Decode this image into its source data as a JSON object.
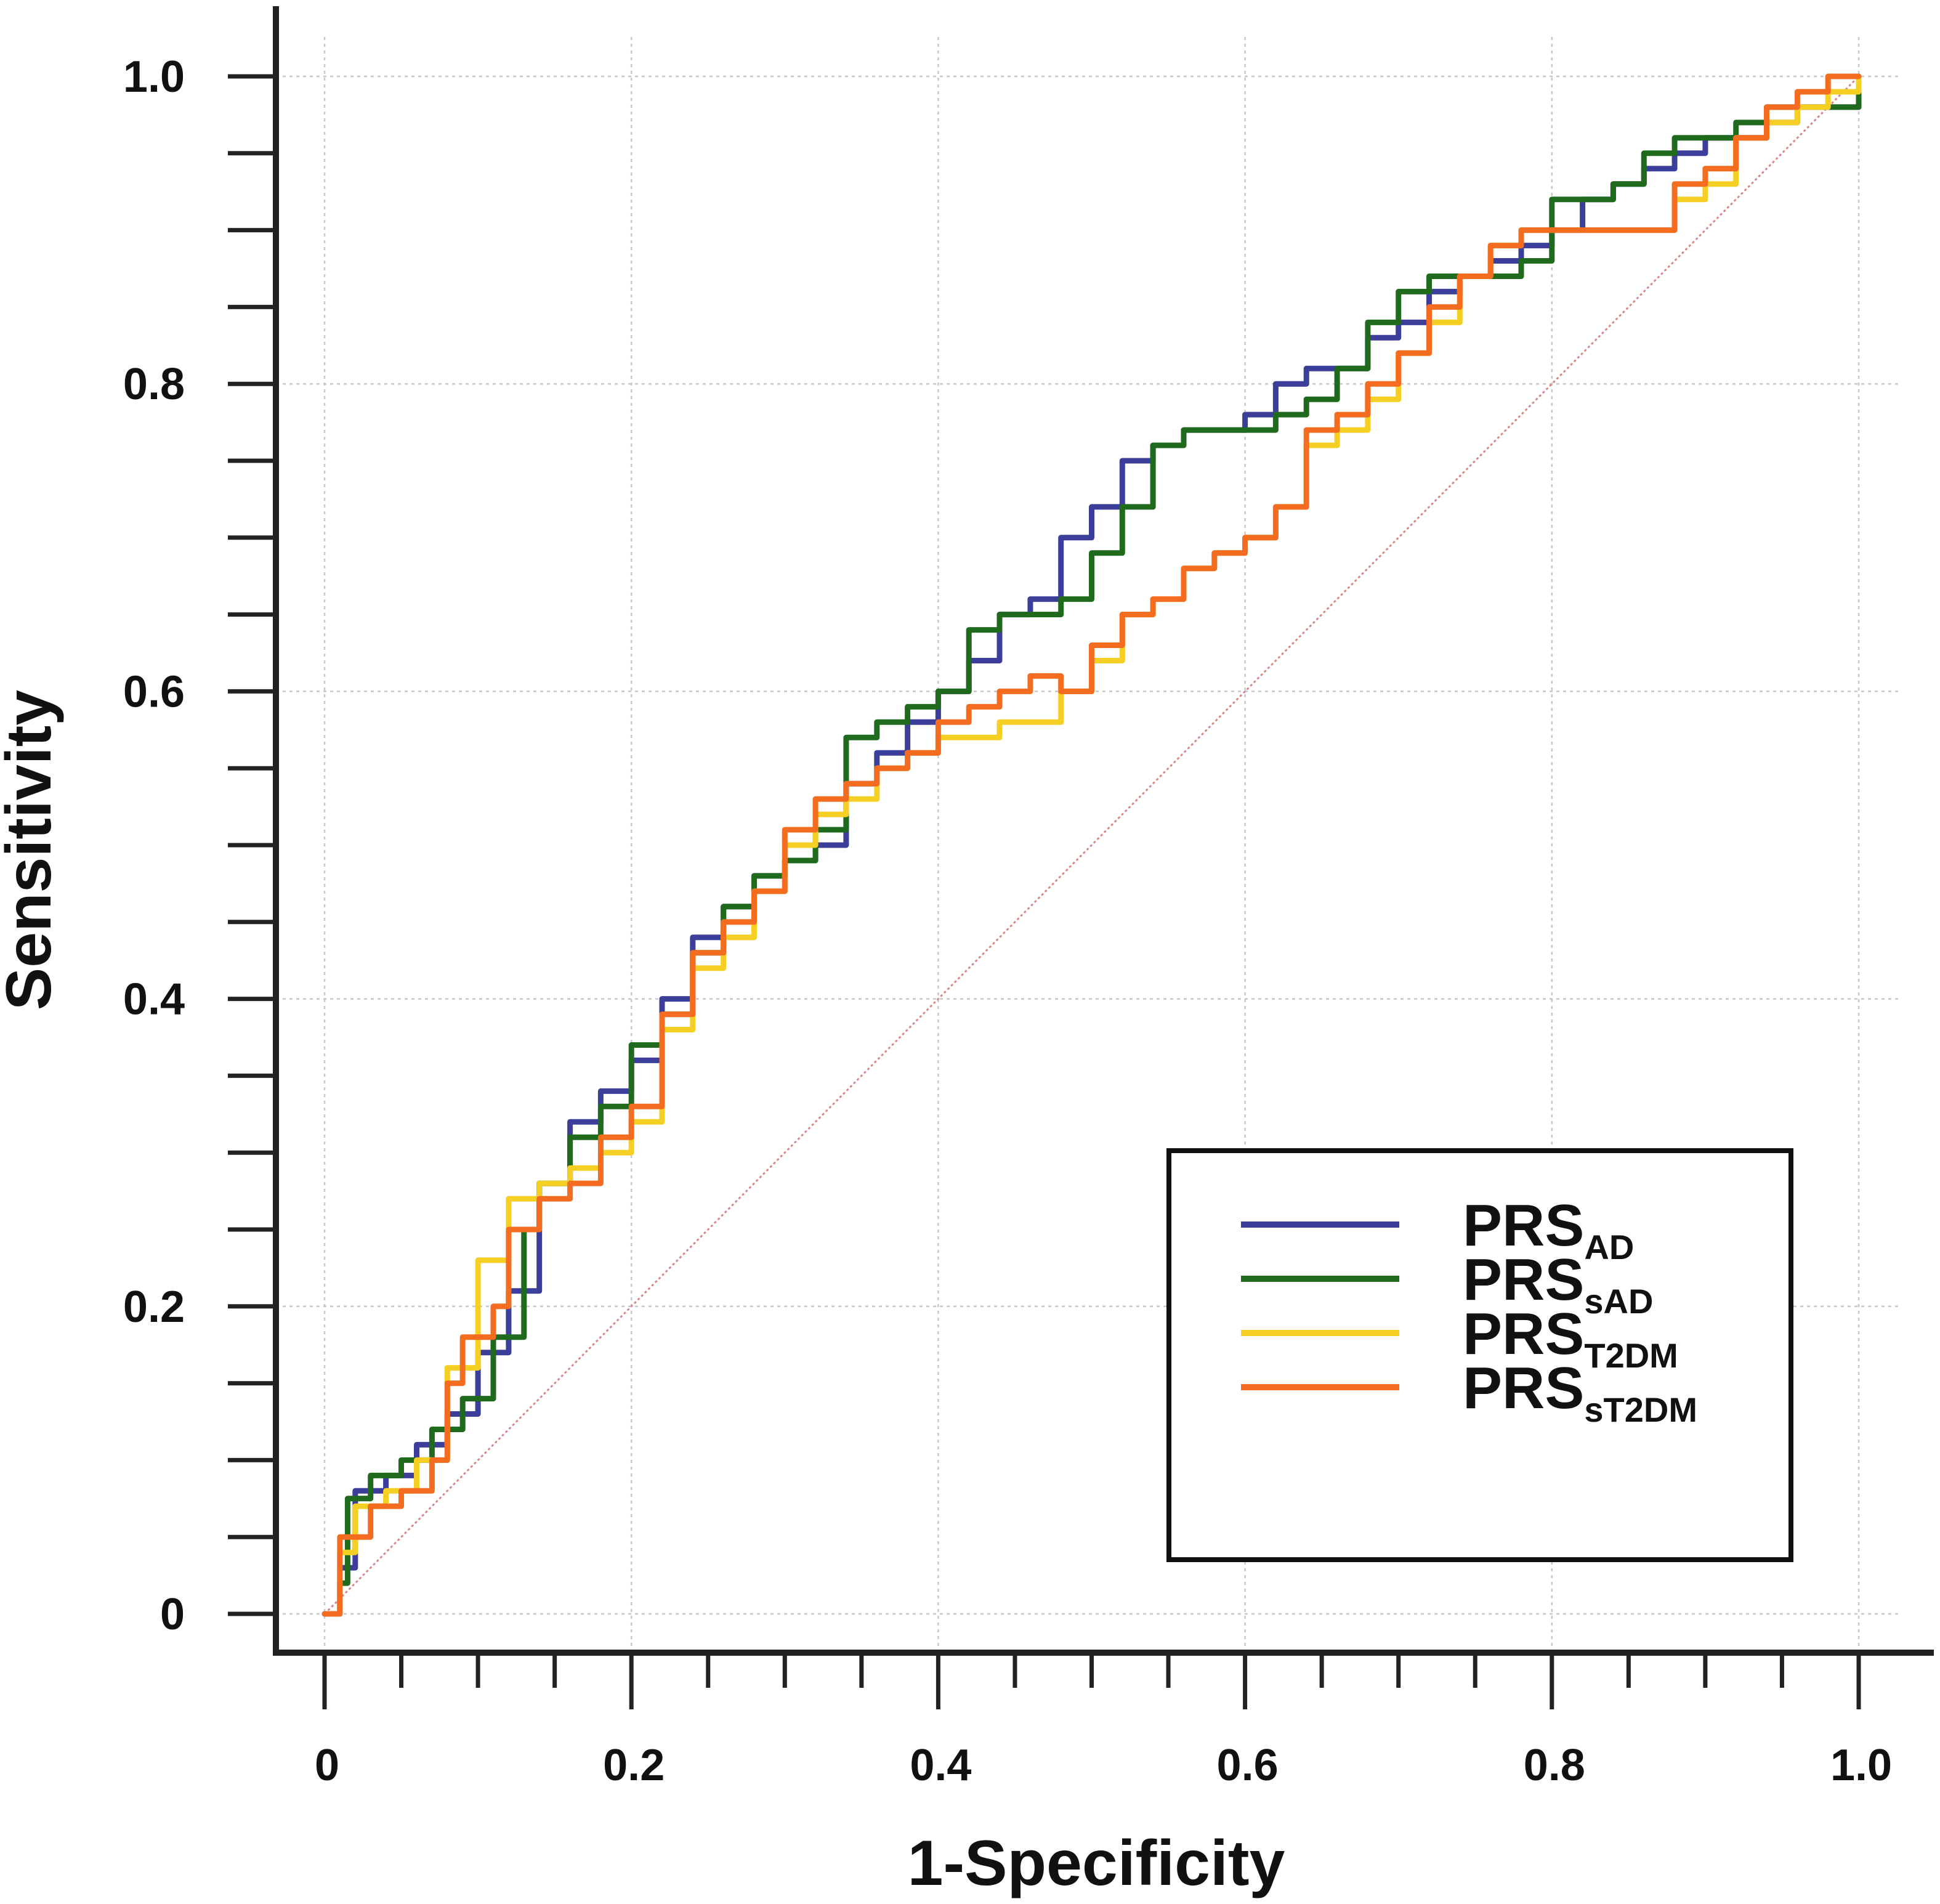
{
  "chart_data": {
    "type": "line",
    "title": "",
    "xlabel": "1-Specificity",
    "ylabel": "Sensitivity",
    "xlim": [
      0,
      1
    ],
    "ylim": [
      0,
      1
    ],
    "x_ticks": [
      "0",
      "0.2",
      "0.4",
      "0.6",
      "0.8",
      "1.0"
    ],
    "y_ticks": [
      "0",
      "0.2",
      "0.4",
      "0.6",
      "0.8",
      "1.0"
    ],
    "x_tick_values": [
      0,
      0.2,
      0.4,
      0.6,
      0.8,
      1.0
    ],
    "y_tick_values": [
      0,
      0.2,
      0.4,
      0.6,
      0.8,
      1.0
    ],
    "grid": true,
    "legend_position": "bottom-right",
    "reference_line": {
      "name": "chance",
      "color": "#d9888a",
      "points": [
        [
          0,
          0
        ],
        [
          1,
          1
        ]
      ]
    },
    "series": [
      {
        "name": "PRS",
        "subscript": "AD",
        "color": "#3b3f9a",
        "points": [
          [
            0,
            0
          ],
          [
            0.01,
            0.03
          ],
          [
            0.02,
            0.08
          ],
          [
            0.04,
            0.09
          ],
          [
            0.06,
            0.11
          ],
          [
            0.08,
            0.13
          ],
          [
            0.1,
            0.17
          ],
          [
            0.12,
            0.21
          ],
          [
            0.14,
            0.28
          ],
          [
            0.16,
            0.32
          ],
          [
            0.18,
            0.34
          ],
          [
            0.2,
            0.36
          ],
          [
            0.22,
            0.4
          ],
          [
            0.24,
            0.44
          ],
          [
            0.26,
            0.46
          ],
          [
            0.28,
            0.48
          ],
          [
            0.3,
            0.49
          ],
          [
            0.32,
            0.5
          ],
          [
            0.34,
            0.54
          ],
          [
            0.36,
            0.56
          ],
          [
            0.38,
            0.58
          ],
          [
            0.4,
            0.6
          ],
          [
            0.42,
            0.62
          ],
          [
            0.44,
            0.65
          ],
          [
            0.46,
            0.66
          ],
          [
            0.48,
            0.7
          ],
          [
            0.5,
            0.72
          ],
          [
            0.52,
            0.75
          ],
          [
            0.54,
            0.76
          ],
          [
            0.56,
            0.77
          ],
          [
            0.58,
            0.77
          ],
          [
            0.6,
            0.78
          ],
          [
            0.62,
            0.8
          ],
          [
            0.64,
            0.81
          ],
          [
            0.66,
            0.81
          ],
          [
            0.68,
            0.83
          ],
          [
            0.7,
            0.84
          ],
          [
            0.72,
            0.86
          ],
          [
            0.74,
            0.87
          ],
          [
            0.76,
            0.88
          ],
          [
            0.78,
            0.89
          ],
          [
            0.8,
            0.9
          ],
          [
            0.82,
            0.92
          ],
          [
            0.84,
            0.93
          ],
          [
            0.86,
            0.94
          ],
          [
            0.88,
            0.95
          ],
          [
            0.9,
            0.96
          ],
          [
            0.92,
            0.96
          ],
          [
            0.94,
            0.97
          ],
          [
            0.96,
            0.98
          ],
          [
            0.98,
            0.98
          ],
          [
            1,
            1
          ]
        ]
      },
      {
        "name": "PRS",
        "subscript": "sAD",
        "color": "#1f6a1d",
        "points": [
          [
            0,
            0
          ],
          [
            0.01,
            0.02
          ],
          [
            0.015,
            0.075
          ],
          [
            0.03,
            0.09
          ],
          [
            0.05,
            0.1
          ],
          [
            0.07,
            0.12
          ],
          [
            0.09,
            0.14
          ],
          [
            0.11,
            0.18
          ],
          [
            0.13,
            0.25
          ],
          [
            0.14,
            0.28
          ],
          [
            0.16,
            0.31
          ],
          [
            0.18,
            0.33
          ],
          [
            0.2,
            0.37
          ],
          [
            0.22,
            0.39
          ],
          [
            0.24,
            0.43
          ],
          [
            0.26,
            0.46
          ],
          [
            0.28,
            0.48
          ],
          [
            0.3,
            0.49
          ],
          [
            0.32,
            0.51
          ],
          [
            0.34,
            0.57
          ],
          [
            0.36,
            0.58
          ],
          [
            0.38,
            0.59
          ],
          [
            0.4,
            0.6
          ],
          [
            0.42,
            0.64
          ],
          [
            0.44,
            0.65
          ],
          [
            0.46,
            0.65
          ],
          [
            0.48,
            0.66
          ],
          [
            0.5,
            0.69
          ],
          [
            0.52,
            0.72
          ],
          [
            0.54,
            0.76
          ],
          [
            0.56,
            0.77
          ],
          [
            0.58,
            0.77
          ],
          [
            0.6,
            0.77
          ],
          [
            0.62,
            0.78
          ],
          [
            0.64,
            0.79
          ],
          [
            0.66,
            0.81
          ],
          [
            0.68,
            0.84
          ],
          [
            0.7,
            0.86
          ],
          [
            0.72,
            0.87
          ],
          [
            0.74,
            0.87
          ],
          [
            0.76,
            0.87
          ],
          [
            0.78,
            0.88
          ],
          [
            0.8,
            0.92
          ],
          [
            0.82,
            0.92
          ],
          [
            0.84,
            0.93
          ],
          [
            0.86,
            0.95
          ],
          [
            0.88,
            0.96
          ],
          [
            0.9,
            0.96
          ],
          [
            0.92,
            0.97
          ],
          [
            0.94,
            0.98
          ],
          [
            0.96,
            0.98
          ],
          [
            0.98,
            0.98
          ],
          [
            1,
            0.99
          ]
        ]
      },
      {
        "name": "PRS",
        "subscript": "T2DM",
        "color": "#f5cf24",
        "points": [
          [
            0,
            0
          ],
          [
            0.01,
            0.04
          ],
          [
            0.02,
            0.07
          ],
          [
            0.04,
            0.08
          ],
          [
            0.06,
            0.1
          ],
          [
            0.08,
            0.16
          ],
          [
            0.1,
            0.23
          ],
          [
            0.12,
            0.27
          ],
          [
            0.14,
            0.28
          ],
          [
            0.16,
            0.29
          ],
          [
            0.18,
            0.3
          ],
          [
            0.2,
            0.32
          ],
          [
            0.22,
            0.38
          ],
          [
            0.24,
            0.42
          ],
          [
            0.26,
            0.44
          ],
          [
            0.28,
            0.47
          ],
          [
            0.3,
            0.5
          ],
          [
            0.32,
            0.52
          ],
          [
            0.34,
            0.53
          ],
          [
            0.36,
            0.55
          ],
          [
            0.38,
            0.56
          ],
          [
            0.4,
            0.57
          ],
          [
            0.42,
            0.57
          ],
          [
            0.44,
            0.58
          ],
          [
            0.46,
            0.58
          ],
          [
            0.48,
            0.6
          ],
          [
            0.5,
            0.62
          ],
          [
            0.52,
            0.65
          ],
          [
            0.54,
            0.66
          ],
          [
            0.56,
            0.68
          ],
          [
            0.58,
            0.69
          ],
          [
            0.6,
            0.7
          ],
          [
            0.62,
            0.72
          ],
          [
            0.64,
            0.76
          ],
          [
            0.66,
            0.77
          ],
          [
            0.68,
            0.79
          ],
          [
            0.7,
            0.82
          ],
          [
            0.72,
            0.84
          ],
          [
            0.74,
            0.87
          ],
          [
            0.76,
            0.89
          ],
          [
            0.78,
            0.9
          ],
          [
            0.8,
            0.9
          ],
          [
            0.82,
            0.9
          ],
          [
            0.84,
            0.9
          ],
          [
            0.86,
            0.9
          ],
          [
            0.88,
            0.92
          ],
          [
            0.9,
            0.93
          ],
          [
            0.92,
            0.96
          ],
          [
            0.94,
            0.97
          ],
          [
            0.96,
            0.98
          ],
          [
            0.98,
            0.99
          ],
          [
            1,
            1
          ]
        ]
      },
      {
        "name": "PRS",
        "subscript": "sT2DM",
        "color": "#f36c1f",
        "points": [
          [
            0,
            0
          ],
          [
            0.01,
            0.05
          ],
          [
            0.03,
            0.07
          ],
          [
            0.05,
            0.08
          ],
          [
            0.07,
            0.1
          ],
          [
            0.08,
            0.15
          ],
          [
            0.09,
            0.18
          ],
          [
            0.11,
            0.2
          ],
          [
            0.12,
            0.25
          ],
          [
            0.14,
            0.27
          ],
          [
            0.16,
            0.28
          ],
          [
            0.18,
            0.31
          ],
          [
            0.2,
            0.33
          ],
          [
            0.22,
            0.39
          ],
          [
            0.24,
            0.43
          ],
          [
            0.26,
            0.45
          ],
          [
            0.28,
            0.47
          ],
          [
            0.3,
            0.51
          ],
          [
            0.32,
            0.53
          ],
          [
            0.34,
            0.54
          ],
          [
            0.36,
            0.55
          ],
          [
            0.38,
            0.56
          ],
          [
            0.4,
            0.58
          ],
          [
            0.42,
            0.59
          ],
          [
            0.44,
            0.6
          ],
          [
            0.46,
            0.61
          ],
          [
            0.48,
            0.6
          ],
          [
            0.5,
            0.63
          ],
          [
            0.52,
            0.65
          ],
          [
            0.54,
            0.66
          ],
          [
            0.56,
            0.68
          ],
          [
            0.58,
            0.69
          ],
          [
            0.6,
            0.7
          ],
          [
            0.62,
            0.72
          ],
          [
            0.64,
            0.77
          ],
          [
            0.66,
            0.78
          ],
          [
            0.68,
            0.8
          ],
          [
            0.7,
            0.82
          ],
          [
            0.72,
            0.85
          ],
          [
            0.74,
            0.87
          ],
          [
            0.76,
            0.89
          ],
          [
            0.78,
            0.9
          ],
          [
            0.8,
            0.9
          ],
          [
            0.82,
            0.9
          ],
          [
            0.84,
            0.9
          ],
          [
            0.86,
            0.9
          ],
          [
            0.88,
            0.93
          ],
          [
            0.9,
            0.94
          ],
          [
            0.92,
            0.96
          ],
          [
            0.94,
            0.98
          ],
          [
            0.96,
            0.99
          ],
          [
            0.98,
            1
          ],
          [
            1,
            1
          ]
        ]
      }
    ]
  }
}
